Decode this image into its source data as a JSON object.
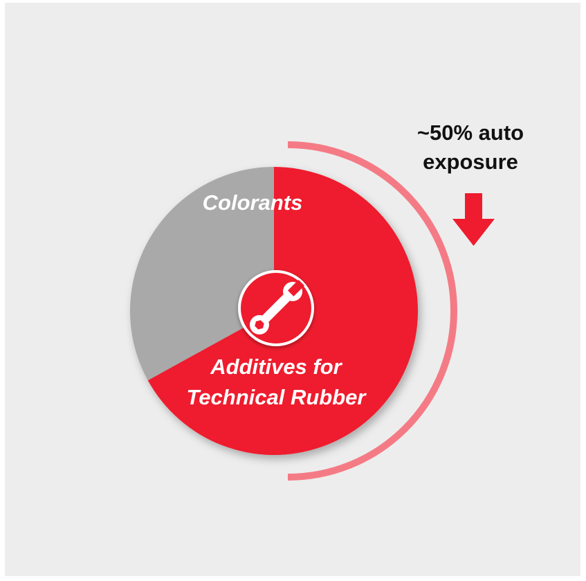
{
  "chart_data": {
    "type": "pie",
    "slices": [
      {
        "label": "Additives for Technical Rubber",
        "value": 67,
        "color": "#ee1c2e"
      },
      {
        "label": "Colorants",
        "value": 33,
        "color": "#a9a9a9"
      }
    ],
    "center_icon": "wrench-icon",
    "annotation": {
      "text": "~50% auto exposure",
      "line1": "~50% auto",
      "line2": "exposure",
      "arrow_icon": "arrow-down-icon",
      "share": 50
    },
    "colors": {
      "accent": "#ee1c2e",
      "arc": "#f47b85",
      "background": "#ededed"
    }
  },
  "labels": {
    "colorants": "Colorants",
    "additives_line1": "Additives for",
    "additives_line2": "Technical Rubber"
  }
}
